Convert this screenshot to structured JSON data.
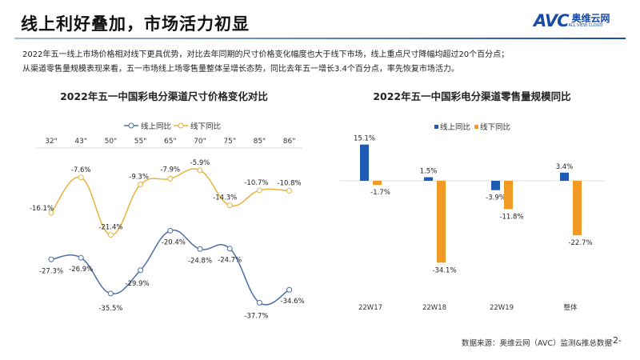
{
  "header": {
    "title": "线上利好叠加，市场活力初显",
    "logo_mark": "AVC",
    "logo_cn": "奥维云网",
    "logo_en": "ALL VIEW CLOUD"
  },
  "description": [
    "2022年五一线上市场价格相对线下更具优势，对比去年同期的尺寸价格变化幅度也大于线下市场，线上重点尺寸降幅均超过20个百分点；",
    "从渠道零售量规模表现来看，五一市场线上场零售量整体呈增长态势，同比去年五一增长3.4个百分点，率先恢复市场活力。"
  ],
  "footer": {
    "source": "数据来源：奥维云网（AVC）监测&推总数据",
    "page": "-2-"
  },
  "colors": {
    "online_line": "#4a6fa5",
    "offline_line": "#e8b33a",
    "online_bar": "#1f5bb5",
    "offline_bar": "#f29a26"
  },
  "chart_data": [
    {
      "type": "line",
      "title": "2022年五一中国彩电分渠道尺寸价格变化对比",
      "legend_position": "top",
      "categories": [
        "32\"",
        "43\"",
        "50\"",
        "55\"",
        "65\"",
        "70\"",
        "75\"",
        "85\"",
        "86\""
      ],
      "series": [
        {
          "name": "线上同比",
          "values": [
            -27.3,
            -26.9,
            -35.5,
            -29.9,
            -20.4,
            -24.8,
            -24.7,
            -37.7,
            -34.6
          ],
          "labels": [
            "-27.3%",
            "-26.9%",
            "-35.5%",
            "-29.9%",
            "-20.4%",
            "-24.8%",
            "-24.7%",
            "-37.7%",
            "-34.6%"
          ]
        },
        {
          "name": "线下同比",
          "values": [
            -16.1,
            -7.6,
            -21.4,
            -9.3,
            -7.9,
            -5.9,
            -14.3,
            -10.7,
            -10.8
          ],
          "labels": [
            "-16.1%",
            "-7.6%",
            "-21.4%",
            "-9.3%",
            "-7.9%",
            "-5.9%",
            "-14.3%",
            "-10.7%",
            "-10.8%"
          ]
        }
      ],
      "unit": "%"
    },
    {
      "type": "bar",
      "title": "2022年五一中国彩电分渠道零售量规模同比",
      "legend_position": "top",
      "categories": [
        "22W17",
        "22W18",
        "22W19",
        "整体"
      ],
      "series": [
        {
          "name": "线上同比",
          "values": [
            15.1,
            1.5,
            -3.9,
            3.4
          ],
          "labels": [
            "15.1%",
            "1.5%",
            "-3.9%",
            "3.4%"
          ]
        },
        {
          "name": "线下同比",
          "values": [
            -1.7,
            -34.1,
            -11.8,
            -22.7
          ],
          "labels": [
            "-1.7%",
            "-34.1%",
            "-11.8%",
            "-22.7%"
          ]
        }
      ],
      "unit": "%"
    }
  ]
}
